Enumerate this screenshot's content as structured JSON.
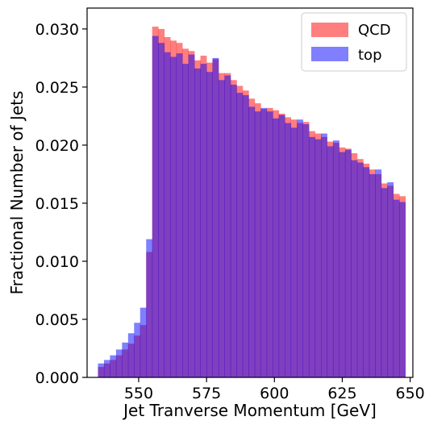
{
  "chart_data": {
    "type": "bar",
    "xlabel": "Jet Tranverse Momentum [GeV]",
    "ylabel": "Fractional Number of Jets",
    "xlim": [
      531,
      651
    ],
    "ylim": [
      0,
      0.0318
    ],
    "xticks": [
      "550",
      "575",
      "600",
      "625",
      "650"
    ],
    "xtick_values": [
      550,
      575,
      600,
      625,
      650
    ],
    "yticks": [
      "0.000",
      "0.005",
      "0.010",
      "0.015",
      "0.020",
      "0.025",
      "0.030"
    ],
    "ytick_values": [
      0.0,
      0.005,
      0.01,
      0.015,
      0.02,
      0.025,
      0.03
    ],
    "grid": false,
    "legend_position": "top-right",
    "bin_edges_start": 535,
    "bin_width": 2.22,
    "series": [
      {
        "name": "QCD",
        "color": "#ff0000",
        "alpha": 0.5,
        "values": [
          0.0009,
          0.0012,
          0.0015,
          0.0019,
          0.0024,
          0.0029,
          0.0036,
          0.0045,
          0.0108,
          0.0302,
          0.03,
          0.0293,
          0.029,
          0.0288,
          0.0283,
          0.0281,
          0.0273,
          0.0277,
          0.0271,
          0.0274,
          0.0262,
          0.0262,
          0.0256,
          0.0251,
          0.0247,
          0.024,
          0.0236,
          0.0231,
          0.0232,
          0.023,
          0.0227,
          0.0224,
          0.0222,
          0.0219,
          0.022,
          0.0212,
          0.021,
          0.0207,
          0.0203,
          0.0202,
          0.0198,
          0.0197,
          0.0193,
          0.0188,
          0.0184,
          0.0179,
          0.0175,
          0.0167,
          0.0165,
          0.0158,
          0.0156
        ]
      },
      {
        "name": "top",
        "color": "#0000ff",
        "alpha": 0.5,
        "values": [
          0.0012,
          0.0015,
          0.0019,
          0.0024,
          0.003,
          0.0038,
          0.0047,
          0.006,
          0.0119,
          0.0294,
          0.0288,
          0.028,
          0.0276,
          0.0279,
          0.027,
          0.0278,
          0.0266,
          0.027,
          0.0263,
          0.0275,
          0.0256,
          0.026,
          0.0252,
          0.0245,
          0.0243,
          0.0233,
          0.0229,
          0.0232,
          0.0229,
          0.0223,
          0.0226,
          0.0219,
          0.0215,
          0.0222,
          0.0218,
          0.0207,
          0.0205,
          0.021,
          0.0199,
          0.0204,
          0.0194,
          0.0196,
          0.0187,
          0.0185,
          0.0181,
          0.0175,
          0.0179,
          0.0163,
          0.0168,
          0.0153,
          0.0151
        ]
      }
    ],
    "legend": [
      {
        "label": "QCD",
        "color": "#ff0000"
      },
      {
        "label": "top",
        "color": "#0000ff"
      }
    ]
  }
}
